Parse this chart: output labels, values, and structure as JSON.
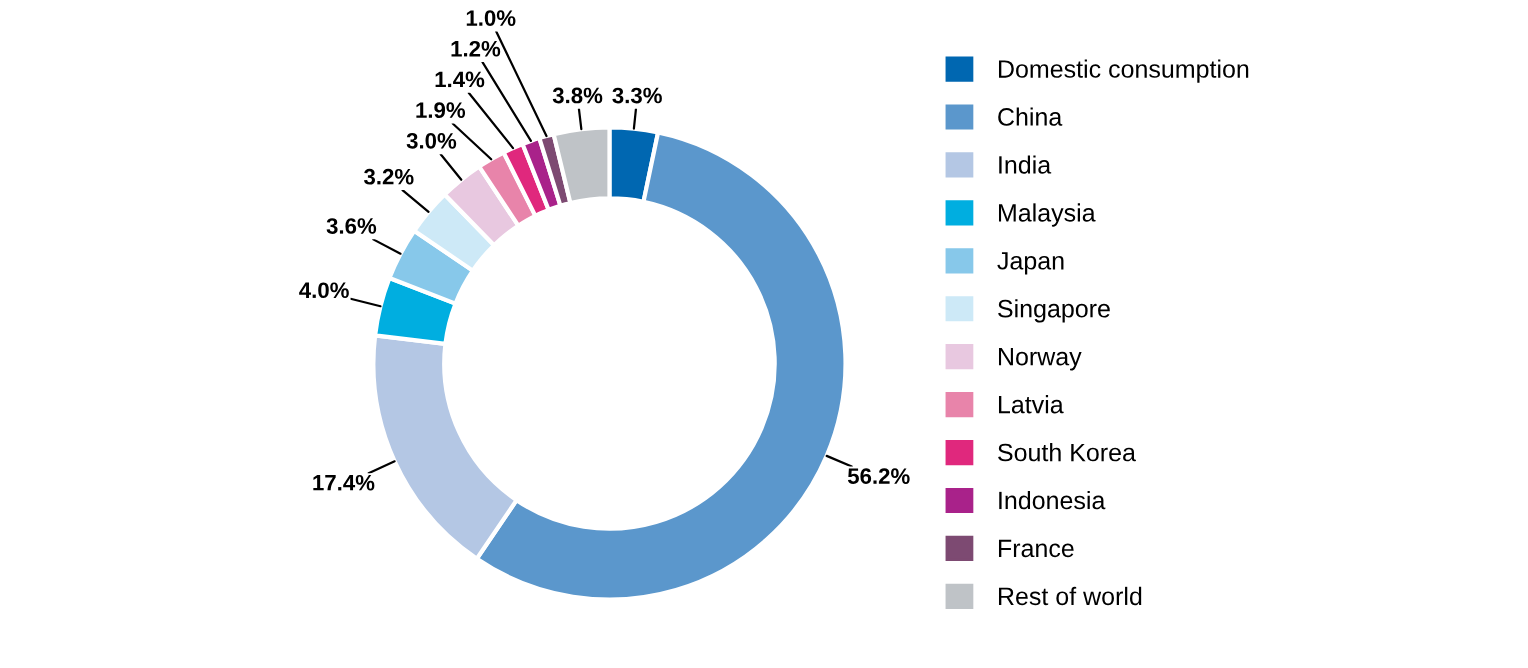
{
  "chart_data": {
    "type": "donut",
    "categories": [
      "Domestic consumption",
      "China",
      "India",
      "Malaysia",
      "Japan",
      "Singapore",
      "Norway",
      "Latvia",
      "South Korea",
      "Indonesia",
      "France",
      "Rest of world"
    ],
    "values": [
      3.3,
      56.2,
      17.4,
      4.0,
      3.6,
      3.2,
      3.0,
      1.9,
      1.4,
      1.2,
      1.0,
      3.8
    ],
    "value_labels": [
      "3.3%",
      "56.2%",
      "17.4%",
      "4.0%",
      "3.6%",
      "3.2%",
      "3.0%",
      "1.9%",
      "1.4%",
      "1.2%",
      "1.0%",
      "3.8%"
    ],
    "colors": [
      "#0067b1",
      "#5b97cc",
      "#b4c7e4",
      "#00aee0",
      "#87c8ea",
      "#cde9f7",
      "#e8c8e0",
      "#e884aa",
      "#e0287d",
      "#a9228a",
      "#7d4a72",
      "#bfc3c7"
    ],
    "legend": "right"
  }
}
